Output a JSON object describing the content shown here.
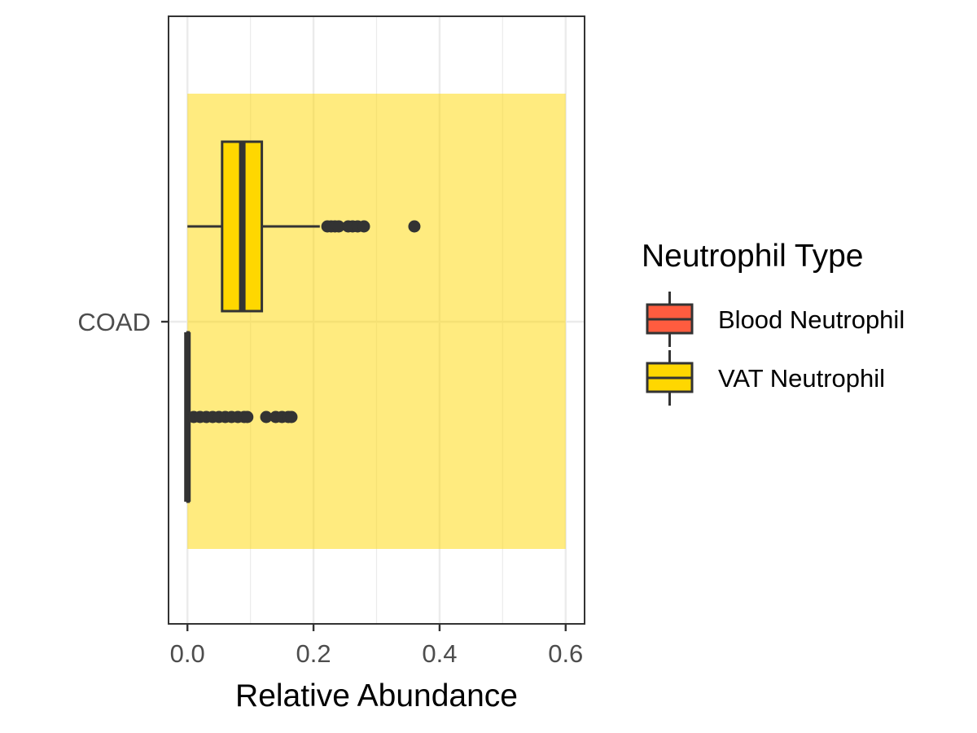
{
  "chart_data": {
    "type": "boxplot",
    "xlabel": "Relative Abundance",
    "ylabel": "",
    "xlim": [
      -0.03,
      0.63
    ],
    "x_ticks": [
      0.0,
      0.2,
      0.4,
      0.6
    ],
    "x_tick_labels": [
      "0.0",
      "0.2",
      "0.4",
      "0.6"
    ],
    "categories": [
      "COAD"
    ],
    "grid": true,
    "legend": {
      "title": "Neutrophil Type",
      "position": "right",
      "entries": [
        {
          "label": "Blood Neutrophil",
          "color": "#FF5C3F"
        },
        {
          "label": "VAT Neutrophil",
          "color": "#FFD700"
        }
      ]
    },
    "highlight_band": {
      "x_range": [
        0.0,
        0.6
      ],
      "color": "#FFD700",
      "opacity": 0.5
    },
    "series": [
      {
        "name": "VAT Neutrophil",
        "category": "COAD",
        "color": "#FFD700",
        "min": 0.0,
        "q1": 0.055,
        "median": 0.087,
        "q3": 0.118,
        "max": 0.21,
        "outliers": [
          0.222,
          0.228,
          0.234,
          0.24,
          0.255,
          0.262,
          0.27,
          0.28,
          0.36
        ]
      },
      {
        "name": "Blood Neutrophil",
        "category": "COAD",
        "color": "#FF5C3F",
        "min": 0.0,
        "q1": 0.0,
        "median": 0.0,
        "q3": 0.002,
        "max": 0.004,
        "outliers": [
          0.01,
          0.02,
          0.03,
          0.04,
          0.05,
          0.06,
          0.07,
          0.08,
          0.09,
          0.095,
          0.125,
          0.14,
          0.15,
          0.16,
          0.165
        ]
      }
    ]
  }
}
